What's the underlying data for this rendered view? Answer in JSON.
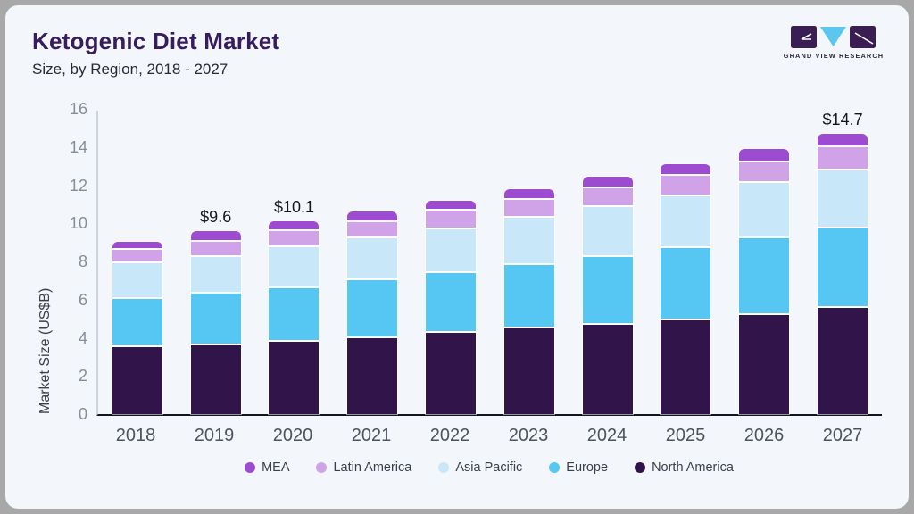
{
  "header": {
    "title": "Ketogenic Diet Market",
    "subtitle": "Size, by Region, 2018 - 2027",
    "logo_wordmark": "GRAND VIEW RESEARCH"
  },
  "colors": {
    "frame": "#a8a8a8",
    "card_bg": "#f3f6fa",
    "title": "#371c5e",
    "subtitle": "#2b2836",
    "x_axis_line": "#14161f",
    "y_axis_line": "#ccd3da",
    "tick_label": "#868d97",
    "x_label": "#4d525c",
    "bar_label": "#15161c",
    "legend_label": "#3a3f49",
    "logo_dark": "#3a1d52",
    "logo_blue": "#5bc6ee"
  },
  "chart_data": {
    "type": "bar",
    "stacked": true,
    "title": "Ketogenic Diet Market Size, by Region, 2018 - 2027",
    "ylabel": "Market Size (US$B)",
    "xlabel": "",
    "ylim": [
      0,
      16
    ],
    "ytick_step": 2,
    "grid": false,
    "legend_position": "bottom",
    "categories": [
      "2018",
      "2019",
      "2020",
      "2021",
      "2022",
      "2023",
      "2024",
      "2025",
      "2026",
      "2027"
    ],
    "series": [
      {
        "name": "North America",
        "color": "#31154a",
        "values": [
          3.5,
          3.6,
          3.8,
          4.0,
          4.25,
          4.5,
          4.7,
          4.9,
          5.2,
          5.55
        ]
      },
      {
        "name": "Europe",
        "color": "#55c7f2",
        "values": [
          2.55,
          2.7,
          2.8,
          3.0,
          3.15,
          3.3,
          3.55,
          3.8,
          4.0,
          4.2
        ]
      },
      {
        "name": "Asia Pacific",
        "color": "#c8e7f8",
        "values": [
          1.85,
          1.95,
          2.15,
          2.2,
          2.3,
          2.5,
          2.6,
          2.7,
          2.9,
          3.05
        ]
      },
      {
        "name": "Latin America",
        "color": "#d0a3e8",
        "values": [
          0.7,
          0.8,
          0.85,
          0.85,
          0.95,
          0.95,
          1.0,
          1.1,
          1.1,
          1.2
        ]
      },
      {
        "name": "MEA",
        "color": "#9d4bd0",
        "values": [
          0.45,
          0.55,
          0.5,
          0.55,
          0.55,
          0.55,
          0.6,
          0.6,
          0.7,
          0.7
        ]
      }
    ],
    "bar_total_labels": [
      "",
      "$9.6",
      "$10.1",
      "",
      "",
      "",
      "",
      "",
      "",
      "$14.7"
    ],
    "legend_order": [
      "MEA",
      "Latin America",
      "Asia Pacific",
      "Europe",
      "North America"
    ]
  }
}
